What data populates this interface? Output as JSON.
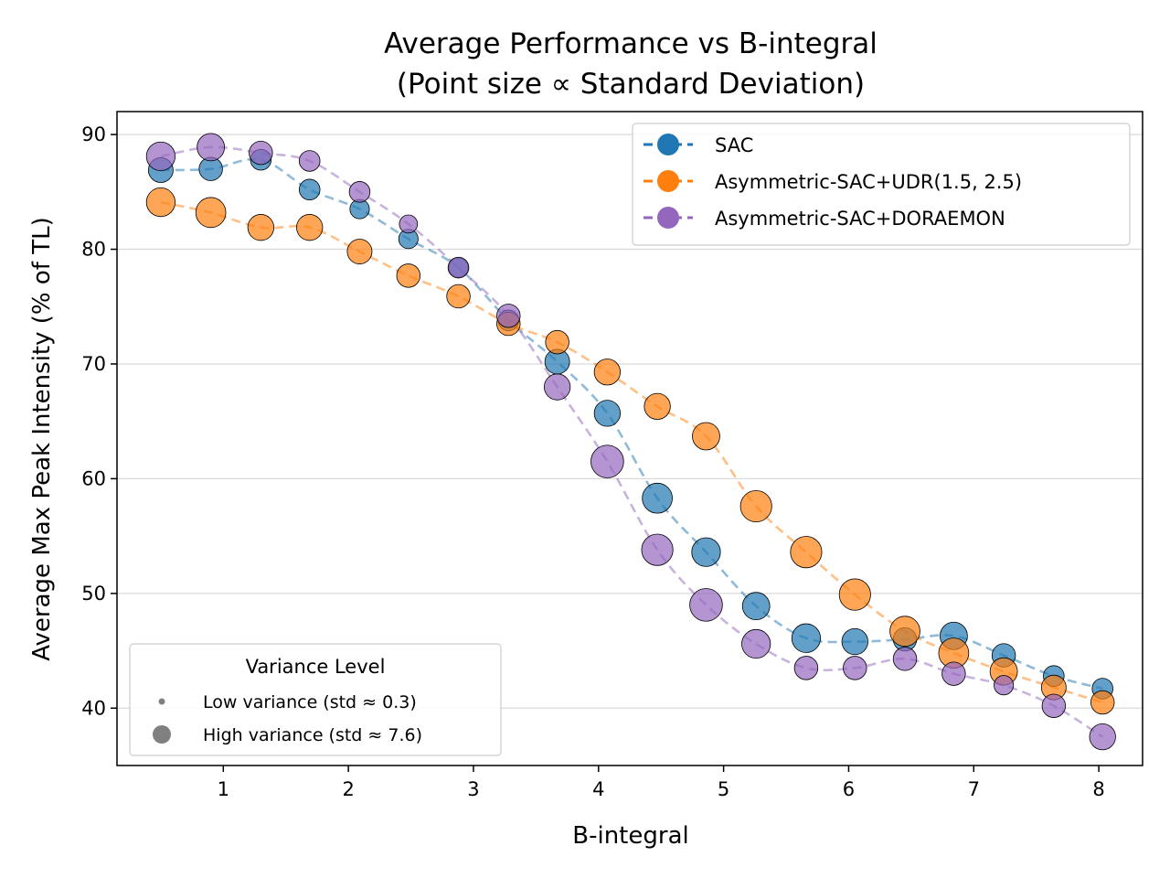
{
  "chart_data": {
    "type": "scatter",
    "title": "Average Performance vs B-integral",
    "subtitle": "(Point size ∝ Standard Deviation)",
    "xlabel": "B-integral",
    "ylabel": "Average Max Peak Intensity (% of TL)",
    "xlim": [
      0.15,
      8.35
    ],
    "ylim": [
      35,
      92
    ],
    "xticks": [
      1,
      2,
      3,
      4,
      5,
      6,
      7,
      8
    ],
    "yticks": [
      40,
      50,
      60,
      70,
      80,
      90
    ],
    "grid": "horizontal",
    "legend_position": "top-right",
    "x": [
      0.5,
      0.9,
      1.3,
      1.69,
      2.09,
      2.48,
      2.88,
      3.28,
      3.67,
      4.07,
      4.47,
      4.86,
      5.26,
      5.66,
      6.05,
      6.45,
      6.84,
      7.24,
      7.64,
      8.03
    ],
    "series": [
      {
        "name": "SAC",
        "color": "#1f77b4",
        "values": [
          86.9,
          87.0,
          87.8,
          85.2,
          83.5,
          80.9,
          78.4,
          73.8,
          70.2,
          65.7,
          58.3,
          53.6,
          48.9,
          46.1,
          45.8,
          46.0,
          46.3,
          44.6,
          42.8,
          41.7
        ],
        "std": [
          4.5,
          4.0,
          3.0,
          3.0,
          2.5,
          2.5,
          2.5,
          3.0,
          4.5,
          5.0,
          6.5,
          6.0,
          5.5,
          6.0,
          5.0,
          4.0,
          5.5,
          4.0,
          3.0,
          3.0
        ]
      },
      {
        "name": "Asymmetric-SAC+UDR(1.5, 2.5)",
        "color": "#ff7f0e",
        "values": [
          84.1,
          83.2,
          81.9,
          81.9,
          79.8,
          77.7,
          75.9,
          73.5,
          71.9,
          69.3,
          66.3,
          63.7,
          57.6,
          53.6,
          49.9,
          46.7,
          44.8,
          43.2,
          41.8,
          40.5
        ],
        "std": [
          6.0,
          6.5,
          5.0,
          5.0,
          4.5,
          4.0,
          4.0,
          4.0,
          4.0,
          5.0,
          5.0,
          5.5,
          7.0,
          7.0,
          7.0,
          6.5,
          6.5,
          5.5,
          4.5,
          4.0
        ]
      },
      {
        "name": "Asymmetric-SAC+DORAEMON",
        "color": "#9467bd",
        "values": [
          88.1,
          88.9,
          88.4,
          87.7,
          85.0,
          82.2,
          78.4,
          74.2,
          68.0,
          61.5,
          53.8,
          49.0,
          45.6,
          43.5,
          43.5,
          44.3,
          43.0,
          42.0,
          40.2,
          37.5
        ],
        "std": [
          6.0,
          5.5,
          4.0,
          3.0,
          3.0,
          2.0,
          3.0,
          4.0,
          5.0,
          7.5,
          7.0,
          7.5,
          6.0,
          4.0,
          4.0,
          4.0,
          4.0,
          2.5,
          4.0,
          5.0
        ]
      }
    ],
    "size_legend": {
      "title": "Variance Level",
      "entries": [
        {
          "label": "Low variance (std ≈ 0.3)",
          "std": 0.3
        },
        {
          "label": "High variance (std ≈ 7.6)",
          "std": 7.6
        }
      ]
    }
  }
}
